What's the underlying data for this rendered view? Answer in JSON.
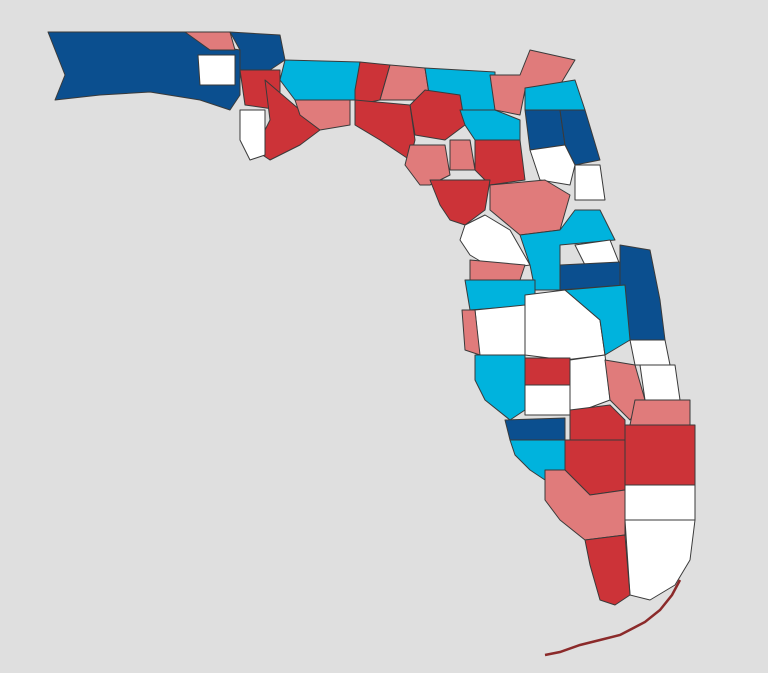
{
  "map": {
    "background": "#dfdfdf",
    "palette": {
      "dark-blue": "#0b4f8f",
      "light-blue": "#00b3dd",
      "light-red": "#e07b7b",
      "dark-red": "#cc3338",
      "white": "#ffffff"
    },
    "keys_color": "#8b2a2a",
    "region_categories": [
      "dark-blue",
      "light-red",
      "dark-blue",
      "white",
      "dark-red",
      "dark-red",
      "white",
      "light-red",
      "light-blue",
      "dark-red",
      "light-red",
      "light-blue",
      "dark-red",
      "dark-red",
      "light-red",
      "light-red",
      "dark-red",
      "dark-red",
      "light-blue",
      "light-red",
      "light-blue",
      "dark-blue",
      "dark-blue",
      "white",
      "white",
      "light-red",
      "white",
      "light-blue",
      "white",
      "dark-blue",
      "dark-blue",
      "light-red",
      "light-blue",
      "white",
      "light-red",
      "white",
      "light-blue",
      "white",
      "light-blue",
      "dark-red",
      "white",
      "white",
      "light-red",
      "white",
      "light-red",
      "dark-blue",
      "dark-red",
      "dark-red",
      "dark-red",
      "light-blue",
      "light-red",
      "white",
      "white",
      "dark-red"
    ]
  }
}
